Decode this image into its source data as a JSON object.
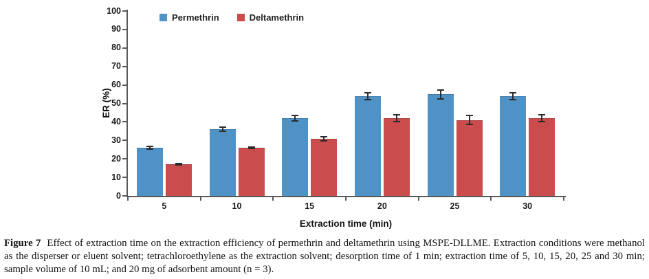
{
  "chart_data": {
    "type": "bar",
    "title": "",
    "xlabel": "Extraction time (min)",
    "ylabel": "ER (%)",
    "ylim": [
      0,
      100
    ],
    "ytick_step": 10,
    "grid": false,
    "legend_position": "top",
    "categories": [
      "5",
      "10",
      "15",
      "20",
      "25",
      "30"
    ],
    "series": [
      {
        "name": "Permethrin",
        "color": "#4E92C6",
        "border_color": "#3D7BAA",
        "values": [
          26,
          36,
          42,
          54,
          55,
          54
        ],
        "errors": [
          1.2,
          1.5,
          1.8,
          2.2,
          2.8,
          2.2
        ]
      },
      {
        "name": "Deltamethrin",
        "color": "#CB4C4C",
        "border_color": "#A83E3E",
        "values": [
          17,
          26,
          31,
          42,
          41,
          42
        ],
        "errors": [
          0.8,
          0.7,
          1.5,
          2.2,
          2.8,
          2.2
        ]
      }
    ]
  },
  "caption": {
    "label": "Figure 7",
    "text": "Effect of extraction time on the extraction efficiency of permethrin and deltamethrin using MSPE-DLLME. Extraction conditions were methanol as the disperser or eluent solvent; tetrachloroethylene as the extraction solvent; desorption time of 1 min; extraction time of 5, 10, 15, 20, 25 and 30 min; sample volume of 10 mL; and 20 mg of adsorbent amount (n = 3)."
  }
}
